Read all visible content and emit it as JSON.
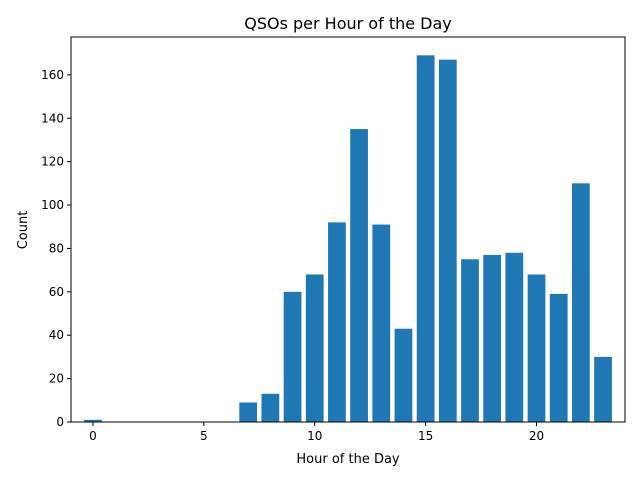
{
  "chart_data": {
    "type": "bar",
    "title": "QSOs per Hour of the Day",
    "xlabel": "Hour of the Day",
    "ylabel": "Count",
    "x": [
      0,
      1,
      2,
      3,
      4,
      5,
      6,
      7,
      8,
      9,
      10,
      11,
      12,
      13,
      14,
      15,
      16,
      17,
      18,
      19,
      20,
      21,
      22,
      23
    ],
    "values": [
      1,
      0,
      0,
      0,
      0,
      0,
      0,
      9,
      13,
      60,
      68,
      92,
      135,
      91,
      43,
      169,
      167,
      75,
      77,
      78,
      68,
      59,
      110,
      30
    ],
    "xlim": [
      -0.99,
      23.99
    ],
    "ylim": [
      0,
      177.45
    ],
    "xticks": [
      0,
      5,
      10,
      15,
      20
    ],
    "yticks": [
      0,
      20,
      40,
      60,
      80,
      100,
      120,
      140,
      160
    ],
    "bar_color": "#1f77b4",
    "grid": false,
    "legend": false
  }
}
